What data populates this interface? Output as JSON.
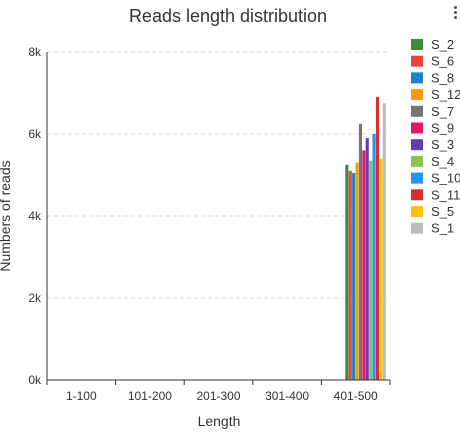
{
  "chart_data": {
    "type": "bar",
    "title": "Reads length distribution",
    "xlabel": "Length",
    "ylabel": "Numbers of reads",
    "categories": [
      "1-100",
      "101-200",
      "201-300",
      "301-400",
      "401-500"
    ],
    "ylim": [
      0,
      8000
    ],
    "yticks": [
      {
        "value": 0,
        "label": "0k"
      },
      {
        "value": 2000,
        "label": "2k"
      },
      {
        "value": 4000,
        "label": "4k"
      },
      {
        "value": 6000,
        "label": "6k"
      },
      {
        "value": 8000,
        "label": "8k"
      }
    ],
    "grid": true,
    "legend_position": "right",
    "series": [
      {
        "name": "S_2",
        "color": "#3b8a3e",
        "values": [
          0,
          0,
          0,
          0,
          5250
        ]
      },
      {
        "name": "S_6",
        "color": "#e8443a",
        "values": [
          0,
          0,
          0,
          0,
          5100
        ]
      },
      {
        "name": "S_8",
        "color": "#1b84c7",
        "values": [
          0,
          0,
          0,
          0,
          5050
        ]
      },
      {
        "name": "S_12",
        "color": "#f59a0c",
        "values": [
          0,
          0,
          0,
          0,
          5300
        ]
      },
      {
        "name": "S_7",
        "color": "#757575",
        "values": [
          0,
          0,
          0,
          0,
          6250
        ]
      },
      {
        "name": "S_9",
        "color": "#e2186b",
        "values": [
          0,
          0,
          0,
          0,
          5600
        ]
      },
      {
        "name": "S_3",
        "color": "#6a3ab3",
        "values": [
          0,
          0,
          0,
          0,
          5900
        ]
      },
      {
        "name": "S_4",
        "color": "#8bc34a",
        "values": [
          0,
          0,
          0,
          0,
          5350
        ]
      },
      {
        "name": "S_10",
        "color": "#2196f3",
        "values": [
          0,
          0,
          0,
          0,
          6000
        ]
      },
      {
        "name": "S_11",
        "color": "#d32f2f",
        "values": [
          0,
          0,
          0,
          0,
          6900
        ]
      },
      {
        "name": "S_5",
        "color": "#ffc107",
        "values": [
          0,
          0,
          0,
          0,
          5400
        ]
      },
      {
        "name": "S_1",
        "color": "#bdbdbd",
        "values": [
          0,
          0,
          0,
          0,
          6750
        ]
      }
    ]
  }
}
